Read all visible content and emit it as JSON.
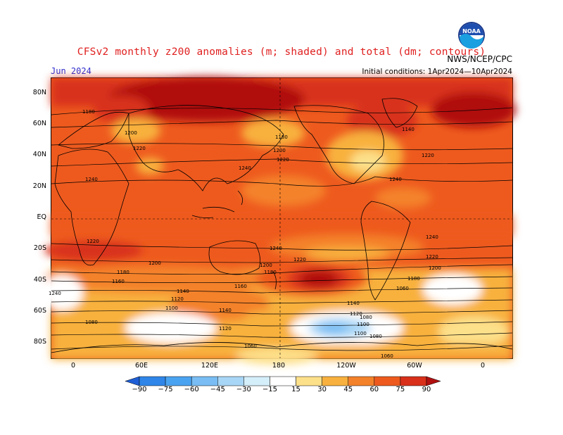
{
  "header": {
    "title": "CFSv2 monthly z200 anomalies (m; shaded) and total (dm; contours)",
    "month": "Jun 2024",
    "initial_conditions": "Initial conditions: 1Apr2024—10Apr2024",
    "agency": "NWS/NCEP/CPC",
    "logo_label": "NOAA"
  },
  "axes": {
    "lat_labels": [
      "80N",
      "60N",
      "40N",
      "20N",
      "EQ",
      "20S",
      "40S",
      "60S",
      "80S"
    ],
    "lon_labels": [
      "0",
      "60E",
      "120E",
      "180",
      "120W",
      "60W",
      "0"
    ]
  },
  "colorbar": {
    "labels": [
      "−90",
      "−75",
      "−60",
      "−45",
      "−30",
      "−15",
      "15",
      "30",
      "45",
      "60",
      "75",
      "90"
    ],
    "colors": [
      "#1f5fd6",
      "#2f86e8",
      "#4aa3f0",
      "#79bdf4",
      "#a8d6f6",
      "#d4eefa",
      "#ffffff",
      "#fde08a",
      "#f8b13e",
      "#f4822a",
      "#ee5a1e",
      "#d8301a",
      "#b01010"
    ]
  },
  "contour_labels": [
    "1180",
    "1200",
    "1220",
    "1240",
    "1240",
    "1200",
    "1220",
    "1180",
    "1140",
    "1120",
    "1100",
    "1080",
    "1060",
    "1160",
    "1180",
    "1200",
    "1220",
    "1240",
    "1140",
    "1120",
    "1100",
    "1080",
    "1060",
    "1200",
    "1220",
    "1240",
    "1180",
    "1160",
    "1140",
    "1120",
    "1100",
    "1080",
    "1060",
    "1240",
    "1220",
    "1200",
    "1180",
    "1140",
    "1220",
    "1240"
  ]
}
